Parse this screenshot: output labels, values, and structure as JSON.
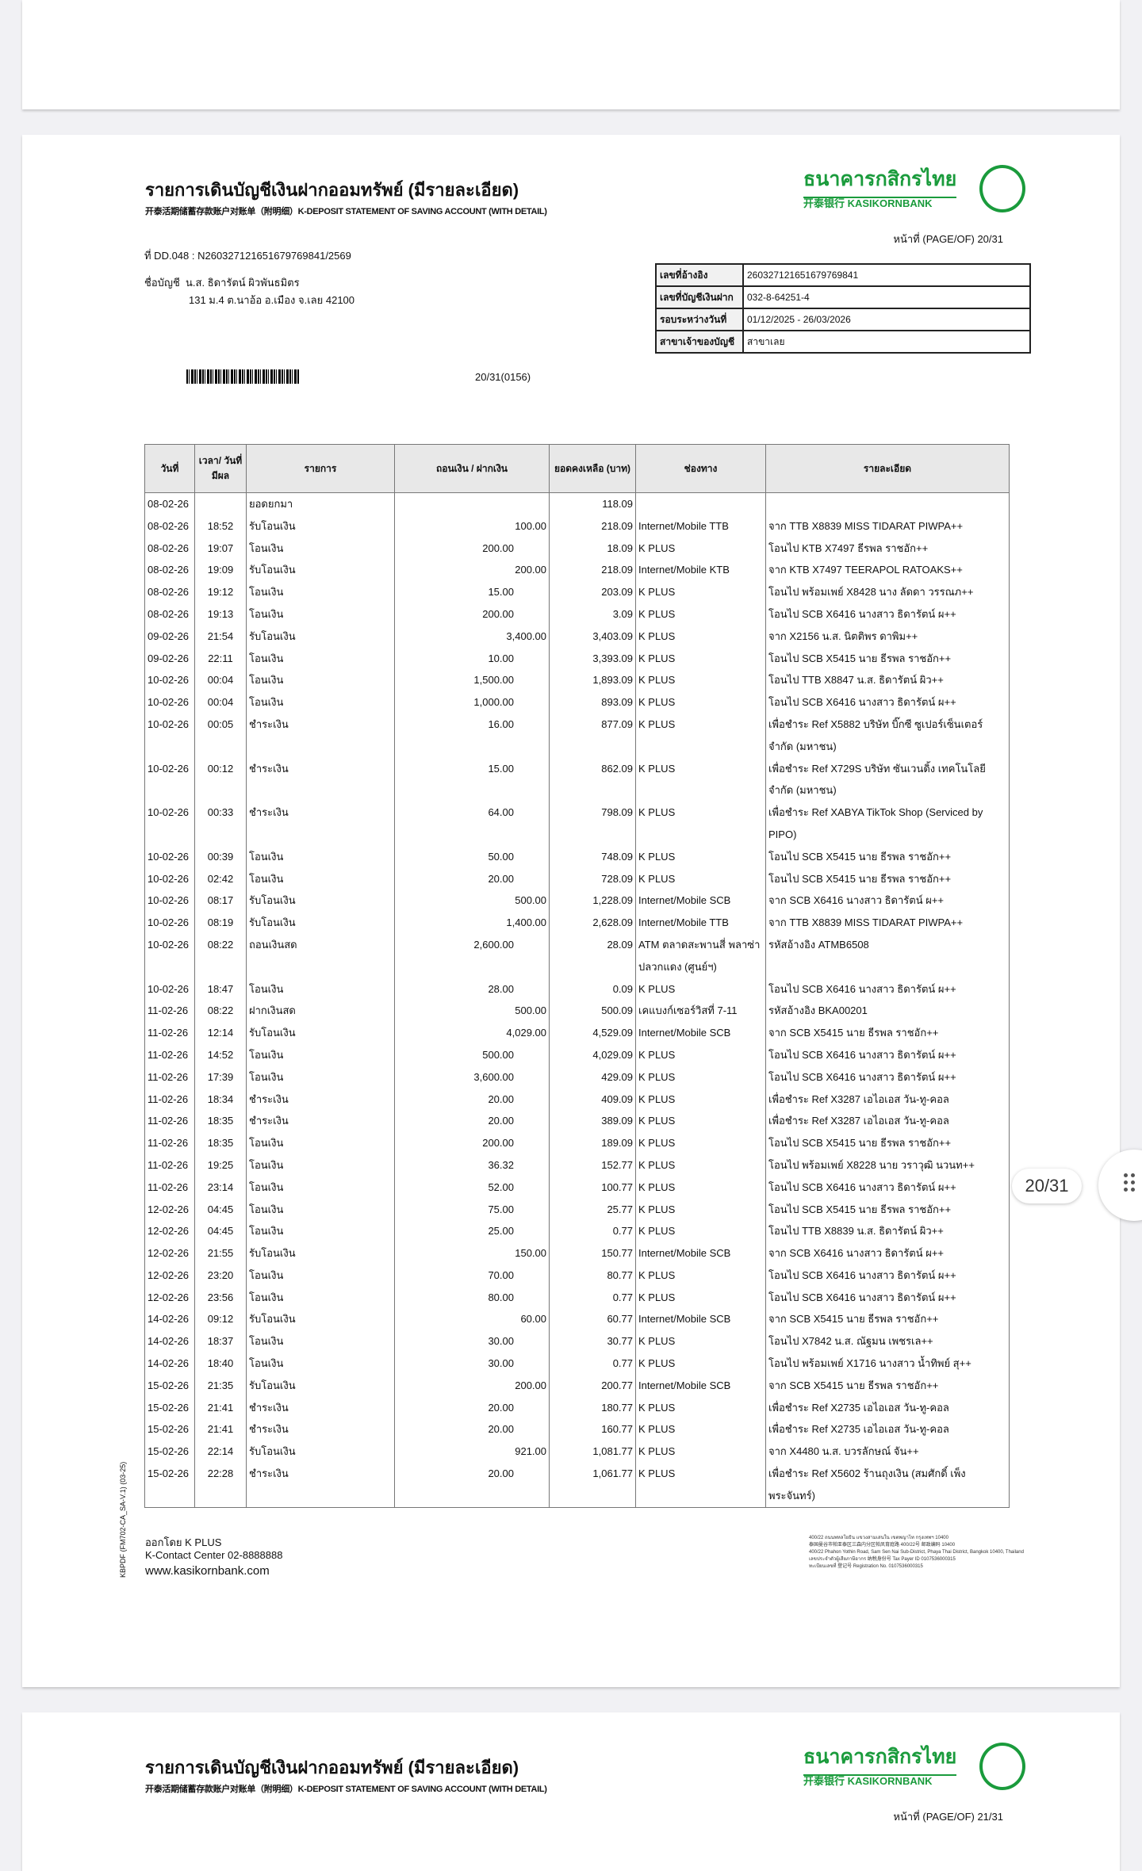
{
  "header": {
    "title": "รายการเดินบัญชีเงินฝากออมทรัพย์ (มีรายละเอียด)",
    "subtitle": "开泰活期储蓄存款账户对账单（附明细）K-DEPOSIT STATEMENT OF SAVING ACCOUNT (WITH DETAIL)",
    "logo_th": "ธนาคารกสิกรไทย",
    "logo_en": "开泰银行 KASIKORNBANK",
    "page_of": "หน้าที่ (PAGE/OF) 20/31",
    "doc_no": "ที่ DD.048 : N260327121651679769841/2569",
    "account_name_label": "ชื่อบัญชี",
    "account_name": "น.ส. ธิดารัตน์ ผิวพันธมิตร",
    "address": "131 ม.4 ต.นาอ้อ อ.เมือง จ.เลย 42100",
    "barcode_text": "20/31(0156)"
  },
  "info": [
    {
      "label": "เลขที่อ้างอิง",
      "value": "260327121651679769841"
    },
    {
      "label": "เลขที่บัญชีเงินฝาก",
      "value": "032-8-64251-4"
    },
    {
      "label": "รอบระหว่างวันที่",
      "value": "01/12/2025 - 26/03/2026"
    },
    {
      "label": "สาขาเจ้าของบัญชี",
      "value": "สาขาเลย"
    }
  ],
  "table": {
    "headers": [
      "วันที่",
      "เวลา/ วันที่มีผล",
      "รายการ",
      "ถอนเงิน / ฝากเงิน",
      "ยอดคงเหลือ (บาท)",
      "ช่องทาง",
      "รายละเอียด"
    ],
    "rows": [
      [
        "08-02-26",
        "",
        "ยอดยกมา",
        "",
        "",
        "118.09",
        "",
        ""
      ],
      [
        "08-02-26",
        "18:52",
        "รับโอนเงิน",
        "",
        "100.00",
        "218.09",
        "Internet/Mobile TTB",
        "จาก TTB X8839 MISS TIDARAT PIWPA++"
      ],
      [
        "08-02-26",
        "19:07",
        "โอนเงิน",
        "200.00",
        "",
        "18.09",
        "K PLUS",
        "โอนไป KTB X7497 ธีรพล ราชอัก++"
      ],
      [
        "08-02-26",
        "19:09",
        "รับโอนเงิน",
        "",
        "200.00",
        "218.09",
        "Internet/Mobile KTB",
        "จาก KTB X7497 TEERAPOL RATOAKS++"
      ],
      [
        "08-02-26",
        "19:12",
        "โอนเงิน",
        "15.00",
        "",
        "203.09",
        "K PLUS",
        "โอนไป พร้อมเพย์ X8428 นาง ลัดดา วรรณภ++"
      ],
      [
        "08-02-26",
        "19:13",
        "โอนเงิน",
        "200.00",
        "",
        "3.09",
        "K PLUS",
        "โอนไป SCB X6416 นางสาว ธิดารัตน์ ผ++"
      ],
      [
        "09-02-26",
        "21:54",
        "รับโอนเงิน",
        "",
        "3,400.00",
        "3,403.09",
        "K PLUS",
        "จาก X2156 น.ส. นิตติพร ดาพิม++"
      ],
      [
        "09-02-26",
        "22:11",
        "โอนเงิน",
        "10.00",
        "",
        "3,393.09",
        "K PLUS",
        "โอนไป SCB X5415 นาย ธีรพล ราชอัก++"
      ],
      [
        "10-02-26",
        "00:04",
        "โอนเงิน",
        "1,500.00",
        "",
        "1,893.09",
        "K PLUS",
        "โอนไป TTB X8847 น.ส. ธิดารัตน์ ผิว++"
      ],
      [
        "10-02-26",
        "00:04",
        "โอนเงิน",
        "1,000.00",
        "",
        "893.09",
        "K PLUS",
        "โอนไป SCB X6416 นางสาว ธิดารัตน์ ผ++"
      ],
      [
        "10-02-26",
        "00:05",
        "ชำระเงิน",
        "16.00",
        "",
        "877.09",
        "K PLUS",
        "เพื่อชำระ Ref X5882 บริษัท บิ๊กซี ซูเปอร์เซ็นเตอร์ จำกัด (มหาชน)"
      ],
      [
        "10-02-26",
        "00:12",
        "ชำระเงิน",
        "15.00",
        "",
        "862.09",
        "K PLUS",
        "เพื่อชำระ Ref X729S บริษัท ซันเวนดิ้ง เทคโนโลยี จำกัด (มหาชน)"
      ],
      [
        "10-02-26",
        "00:33",
        "ชำระเงิน",
        "64.00",
        "",
        "798.09",
        "K PLUS",
        "เพื่อชำระ Ref XABYA TikTok Shop (Serviced by PIPO)"
      ],
      [
        "10-02-26",
        "00:39",
        "โอนเงิน",
        "50.00",
        "",
        "748.09",
        "K PLUS",
        "โอนไป SCB X5415 นาย ธีรพล ราชอัก++"
      ],
      [
        "10-02-26",
        "02:42",
        "โอนเงิน",
        "20.00",
        "",
        "728.09",
        "K PLUS",
        "โอนไป SCB X5415 นาย ธีรพล ราชอัก++"
      ],
      [
        "10-02-26",
        "08:17",
        "รับโอนเงิน",
        "",
        "500.00",
        "1,228.09",
        "Internet/Mobile SCB",
        "จาก SCB X6416 นางสาว ธิดารัตน์ ผ++"
      ],
      [
        "10-02-26",
        "08:19",
        "รับโอนเงิน",
        "",
        "1,400.00",
        "2,628.09",
        "Internet/Mobile TTB",
        "จาก TTB X8839 MISS TIDARAT PIWPA++"
      ],
      [
        "10-02-26",
        "08:22",
        "ถอนเงินสด",
        "2,600.00",
        "",
        "28.09",
        "ATM ตลาดสะพานสี่ พลาซ่า ปลวกแดง (ศูนย์ฯ)",
        "รหัสอ้างอิง ATMB6508"
      ],
      [
        "10-02-26",
        "18:47",
        "โอนเงิน",
        "28.00",
        "",
        "0.09",
        "K PLUS",
        "โอนไป SCB X6416 นางสาว ธิดารัตน์ ผ++"
      ],
      [
        "11-02-26",
        "08:22",
        "ฝากเงินสด",
        "",
        "500.00",
        "500.09",
        "เคแบงก์เซอร์วิสที่ 7-11",
        "รหัสอ้างอิง BKA00201"
      ],
      [
        "11-02-26",
        "12:14",
        "รับโอนเงิน",
        "",
        "4,029.00",
        "4,529.09",
        "Internet/Mobile SCB",
        "จาก SCB X5415 นาย ธีรพล ราชอัก++"
      ],
      [
        "11-02-26",
        "14:52",
        "โอนเงิน",
        "500.00",
        "",
        "4,029.09",
        "K PLUS",
        "โอนไป SCB X6416 นางสาว ธิดารัตน์ ผ++"
      ],
      [
        "11-02-26",
        "17:39",
        "โอนเงิน",
        "3,600.00",
        "",
        "429.09",
        "K PLUS",
        "โอนไป SCB X6416 นางสาว ธิดารัตน์ ผ++"
      ],
      [
        "11-02-26",
        "18:34",
        "ชำระเงิน",
        "20.00",
        "",
        "409.09",
        "K PLUS",
        "เพื่อชำระ Ref X3287 เอไอเอส วัน-ทู-คอล"
      ],
      [
        "11-02-26",
        "18:35",
        "ชำระเงิน",
        "20.00",
        "",
        "389.09",
        "K PLUS",
        "เพื่อชำระ Ref X3287 เอไอเอส วัน-ทู-คอล"
      ],
      [
        "11-02-26",
        "18:35",
        "โอนเงิน",
        "200.00",
        "",
        "189.09",
        "K PLUS",
        "โอนไป SCB X5415 นาย ธีรพล ราชอัก++"
      ],
      [
        "11-02-26",
        "19:25",
        "โอนเงิน",
        "36.32",
        "",
        "152.77",
        "K PLUS",
        "โอนไป พร้อมเพย์ X8228 นาย วราวุฒิ นวนท++"
      ],
      [
        "11-02-26",
        "23:14",
        "โอนเงิน",
        "52.00",
        "",
        "100.77",
        "K PLUS",
        "โอนไป SCB X6416 นางสาว ธิดารัตน์ ผ++"
      ],
      [
        "12-02-26",
        "04:45",
        "โอนเงิน",
        "75.00",
        "",
        "25.77",
        "K PLUS",
        "โอนไป SCB X5415 นาย ธีรพล ราชอัก++"
      ],
      [
        "12-02-26",
        "04:45",
        "โอนเงิน",
        "25.00",
        "",
        "0.77",
        "K PLUS",
        "โอนไป TTB X8839 น.ส. ธิดารัตน์ ผิว++"
      ],
      [
        "12-02-26",
        "21:55",
        "รับโอนเงิน",
        "",
        "150.00",
        "150.77",
        "Internet/Mobile SCB",
        "จาก SCB X6416 นางสาว ธิดารัตน์ ผ++"
      ],
      [
        "12-02-26",
        "23:20",
        "โอนเงิน",
        "70.00",
        "",
        "80.77",
        "K PLUS",
        "โอนไป SCB X6416 นางสาว ธิดารัตน์ ผ++"
      ],
      [
        "12-02-26",
        "23:56",
        "โอนเงิน",
        "80.00",
        "",
        "0.77",
        "K PLUS",
        "โอนไป SCB X6416 นางสาว ธิดารัตน์ ผ++"
      ],
      [
        "14-02-26",
        "09:12",
        "รับโอนเงิน",
        "",
        "60.00",
        "60.77",
        "Internet/Mobile SCB",
        "จาก SCB X5415 นาย ธีรพล ราชอัก++"
      ],
      [
        "14-02-26",
        "18:37",
        "โอนเงิน",
        "30.00",
        "",
        "30.77",
        "K PLUS",
        "โอนไป X7842 น.ส. ณัฐมน เพชรเล++"
      ],
      [
        "14-02-26",
        "18:40",
        "โอนเงิน",
        "30.00",
        "",
        "0.77",
        "K PLUS",
        "โอนไป พร้อมเพย์ X1716 นางสาว น้ำทิพย์ สุ++"
      ],
      [
        "15-02-26",
        "21:35",
        "รับโอนเงิน",
        "",
        "200.00",
        "200.77",
        "Internet/Mobile SCB",
        "จาก SCB X5415 นาย ธีรพล ราชอัก++"
      ],
      [
        "15-02-26",
        "21:41",
        "ชำระเงิน",
        "20.00",
        "",
        "180.77",
        "K PLUS",
        "เพื่อชำระ Ref X2735 เอไอเอส วัน-ทู-คอล"
      ],
      [
        "15-02-26",
        "21:41",
        "ชำระเงิน",
        "20.00",
        "",
        "160.77",
        "K PLUS",
        "เพื่อชำระ Ref X2735 เอไอเอส วัน-ทู-คอล"
      ],
      [
        "15-02-26",
        "22:14",
        "รับโอนเงิน",
        "",
        "921.00",
        "1,081.77",
        "K PLUS",
        "จาก X4480 น.ส. บวรลักษณ์ จัน++"
      ],
      [
        "15-02-26",
        "22:28",
        "ชำระเงิน",
        "20.00",
        "",
        "1,061.77",
        "K PLUS",
        "เพื่อชำระ Ref X5602 ร้านถุงเงิน (สมศักดิ์ เพ็งพระจันทร์)"
      ]
    ]
  },
  "side_code": "KBPDF (FM702-CA_SA-V.1) (03-25)",
  "footer": {
    "issued_by": "ออกโดย K PLUS",
    "contact": "K-Contact Center 02-8888888",
    "website": "www.kasikornbank.com",
    "address_lines": [
      "400/22 ถนนพหลโยธิน แขวงสามเสนใน เขตพญาไท กรุงเทพฯ 10400",
      "泰国曼谷市帕亚泰区三森内分区帕凤育庭路 400/22号 邮政编码 10400",
      "400/22 Phahon Yothin Road, Sam Sen Nai Sub-District, Phaya Thai District, Bangkok 10400, Thailand",
      "เลขประจำตัวผู้เสียภาษีอากร 纳税身份号 Tax Payer ID 0107536000315",
      "ทะเบียนเลขที่ 登记号 Registration No. 0107536000315"
    ]
  },
  "next_page": {
    "title": "รายการเดินบัญชีเงินฝากออมทรัพย์ (มีรายละเอียด)",
    "subtitle": "开泰活期储蓄存款账户对账单（附明细）K-DEPOSIT STATEMENT OF SAVING ACCOUNT (WITH DETAIL)",
    "logo_th": "ธนาคารกสิกรไทย",
    "logo_en": "开泰银行 KASIKORNBANK",
    "page_of": "หน้าที่ (PAGE/OF) 21/31"
  },
  "viewer": {
    "page_indicator": "20/31",
    "menu_icon": "grid-dots-icon"
  },
  "colors": {
    "brand_green": "#1a9b3c"
  }
}
